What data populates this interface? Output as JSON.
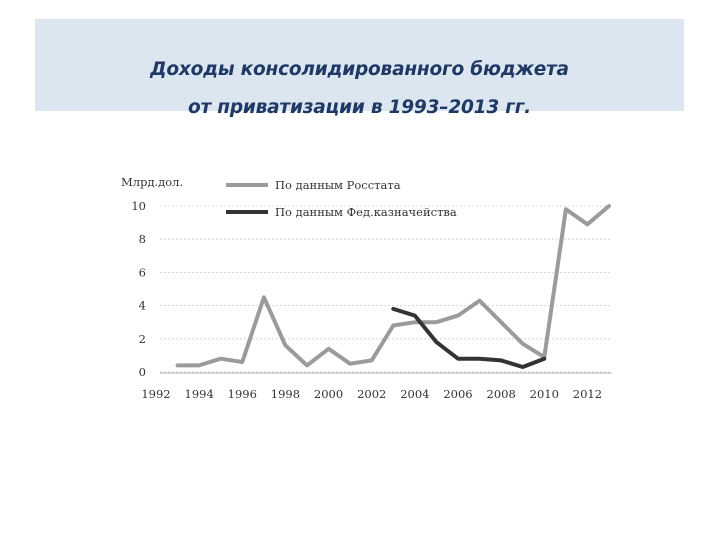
{
  "title": {
    "line1": "Доходы консолидированного бюджета",
    "line2": "от приватизации в 1993–2013 гг."
  },
  "colors": {
    "title_bg": "#dce6f1",
    "title_text": "#1f3864",
    "rosstat": "#9b9b9b",
    "treasury": "#333333",
    "grid": "#cccccc"
  },
  "chart_data": {
    "type": "line",
    "ylabel": "Млрд.дол.",
    "xlabel": "",
    "ylim": [
      0,
      10
    ],
    "xlim": [
      1992,
      2013
    ],
    "grid": true,
    "legend_position": "top",
    "y_ticks": [
      "0",
      "2",
      "4",
      "6",
      "8",
      "10"
    ],
    "x_ticks": [
      "1992",
      "1994",
      "1996",
      "1998",
      "2000",
      "2002",
      "2004",
      "2006",
      "2008",
      "2010",
      "2012"
    ],
    "series": [
      {
        "name": "По данным Росстата",
        "x": [
          1993,
          1994,
          1995,
          1996,
          1997,
          1998,
          1999,
          2000,
          2001,
          2002,
          2003,
          2004,
          2005,
          2006,
          2007,
          2008,
          2009,
          2010,
          2011,
          2012,
          2013
        ],
        "y": [
          0.4,
          0.4,
          0.8,
          0.6,
          4.5,
          1.6,
          0.4,
          1.4,
          0.5,
          0.7,
          2.8,
          3.0,
          3.0,
          3.4,
          4.3,
          3.0,
          1.7,
          0.9,
          9.8,
          8.9,
          10.0
        ]
      },
      {
        "name": "По данным Фед.казначейства",
        "x": [
          2003,
          2004,
          2005,
          2006,
          2007,
          2008,
          2009,
          2010
        ],
        "y": [
          3.8,
          3.4,
          1.8,
          0.8,
          0.8,
          0.7,
          0.3,
          0.8
        ]
      }
    ]
  }
}
